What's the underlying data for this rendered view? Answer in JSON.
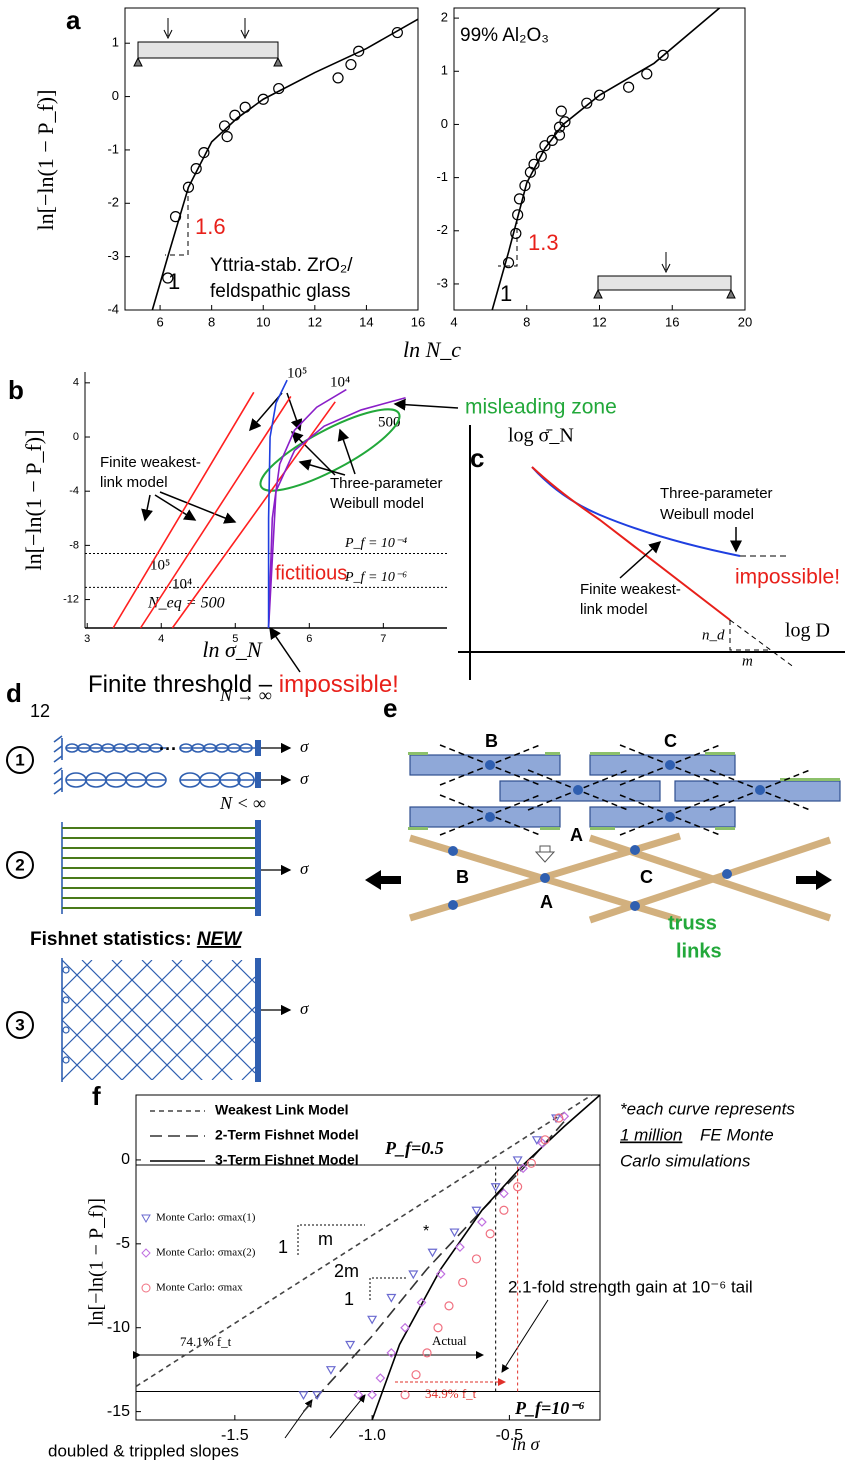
{
  "chart_data": [
    {
      "type": "scatter",
      "panel_label": "a",
      "ylabel": "ln[−ln(1 − P_f)]",
      "xlabel": "ln N_c",
      "xlim": [
        4.64,
        16
      ],
      "xticks": [
        6,
        8,
        10,
        12,
        14,
        16
      ],
      "ylim": [
        -4,
        1.66
      ],
      "yticks": [
        -4,
        -3,
        -2,
        -1,
        0,
        1
      ],
      "series": [
        {
          "type": "scatter",
          "marker": "circle",
          "color": "#000000",
          "x": [
            6.3,
            6.6,
            7.1,
            7.4,
            7.7,
            8.5,
            8.6,
            8.9,
            9.3,
            10.0,
            10.6,
            12.9,
            13.4,
            13.7,
            15.2
          ],
          "values": [
            -3.4,
            -2.25,
            -1.7,
            -1.35,
            -1.05,
            -0.55,
            -0.75,
            -0.35,
            -0.2,
            -0.05,
            0.15,
            0.35,
            0.6,
            0.85,
            1.2
          ]
        },
        {
          "type": "line",
          "color": "#000000",
          "x": [
            5.7,
            6.3,
            7.1,
            8,
            9,
            10,
            12,
            14,
            16
          ],
          "values": [
            -4,
            -3,
            -1.7,
            -0.85,
            -0.4,
            -0.05,
            0.45,
            0.9,
            1.45
          ]
        }
      ],
      "annotations": [
        "1.6",
        "1",
        "Yttria-stab. ZrO₂/",
        "feldspathic glass"
      ],
      "annotation_color": "#e8201a"
    },
    {
      "type": "scatter",
      "xlim": [
        4,
        20
      ],
      "xticks": [
        4,
        8,
        12,
        16,
        20
      ],
      "ylim": [
        -3.49,
        2.19
      ],
      "yticks": [
        -3,
        -2,
        -1,
        0,
        1,
        2
      ],
      "series": [
        {
          "type": "scatter",
          "marker": "circle",
          "color": "#000000",
          "x": [
            7,
            7.4,
            7.5,
            7.6,
            7.9,
            8.2,
            8.4,
            8.8,
            9,
            9.4,
            9.8,
            9.8,
            9.9,
            10.1,
            11.3,
            12,
            13.6,
            14.6,
            15.5
          ],
          "values": [
            -2.6,
            -2.05,
            -1.7,
            -1.4,
            -1.15,
            -0.9,
            -0.75,
            -0.6,
            -0.4,
            -0.3,
            -0.2,
            -0.05,
            0.25,
            0.05,
            0.4,
            0.55,
            0.7,
            0.95,
            1.3
          ]
        },
        {
          "type": "line",
          "color": "#000000",
          "x": [
            6.1,
            7,
            8,
            9,
            10,
            12,
            15,
            18.6
          ],
          "values": [
            -3.49,
            -2.4,
            -1.1,
            -0.45,
            0,
            0.55,
            1.15,
            2.19
          ]
        }
      ],
      "annotations": [
        "99% Al₂O₃",
        "1.3",
        "1"
      ],
      "annotation_color": "#e8201a"
    },
    {
      "type": "line",
      "panel_label": "b",
      "ylabel": "ln[−ln(1 − P_f)]",
      "xlabel": "ln σ_N",
      "xlim": [
        2.97,
        7.86
      ],
      "xticks": [
        3,
        4,
        5,
        6,
        7
      ],
      "ylim": [
        -14.1,
        4.8
      ],
      "yticks": [
        -12,
        -8,
        -4,
        0,
        4
      ],
      "hlines": [
        -8.6,
        -11.1
      ],
      "series": [
        {
          "type": "line",
          "color": "#ff2020",
          "x": [
            3.35,
            5.25
          ],
          "values": [
            -14.1,
            3.3
          ]
        },
        {
          "type": "line",
          "color": "#ff2020",
          "x": [
            3.72,
            5.75
          ],
          "values": [
            -14.1,
            3.0
          ]
        },
        {
          "type": "line",
          "color": "#ff2020",
          "x": [
            4.15,
            6.35
          ],
          "values": [
            -14.1,
            2.6
          ]
        },
        {
          "type": "line",
          "color": "#8a1fc8",
          "x": [
            5.45,
            5.5,
            5.6,
            5.8,
            6.1,
            6.5
          ],
          "values": [
            -14.1,
            -6,
            -2,
            0.5,
            2.2,
            3.5
          ]
        },
        {
          "type": "line",
          "color": "#8a1fc8",
          "x": [
            5.45,
            5.55,
            5.8,
            6.2,
            6.7,
            7.3
          ],
          "values": [
            -14.1,
            -4,
            -1,
            0.8,
            2.0,
            2.9
          ]
        },
        {
          "type": "line",
          "color": "#1f3fe0",
          "x": [
            5.45,
            5.45,
            5.47,
            5.55,
            5.7
          ],
          "values": [
            -14.1,
            -6,
            0,
            2.5,
            4.2
          ]
        }
      ],
      "annotations": [
        "10⁵",
        "10⁴",
        "500",
        "10⁵",
        "10⁴",
        "N_eq = 500",
        "P_f = 10⁻⁴",
        "P_f = 10⁻⁶",
        "Finite weakest-",
        "link model",
        "Three-parameter",
        "Weibull model",
        "misleading zone",
        "fictitious",
        "Finite threshold – ",
        "impossible!"
      ]
    },
    {
      "type": "scatter",
      "panel_label": "f",
      "ylabel": "ln[−ln(1 − P_f)]",
      "xlabel": "ln σ",
      "xlim": [
        -1.86,
        -0.17
      ],
      "xticks": [
        -1.5,
        {
          "value": -1,
          "label": "-1.0"
        },
        -0.5
      ],
      "ylim": [
        -15.5,
        3.87
      ],
      "yticks": [
        -15,
        -10,
        -5,
        0
      ],
      "hlines": [
        -0.3,
        -13.8
      ],
      "vlines": [
        -0.55,
        -0.47
      ],
      "vline_colors": [
        "#000000",
        "#e0302a"
      ],
      "series": [
        {
          "name": "Weakest Link Model",
          "type": "line",
          "dash": "dashed",
          "color": "#444444",
          "x": [
            -1.86,
            -0.2
          ],
          "values": [
            -13.5,
            3.87
          ]
        },
        {
          "name": "2-Term Fishnet Model",
          "type": "line",
          "dash": "long-dashed",
          "color": "#333333",
          "x": [
            -1.25,
            -1.0,
            -0.8,
            -0.6,
            -0.45,
            -0.3
          ],
          "values": [
            -15,
            -10.5,
            -6.5,
            -3,
            -0.5,
            2.3
          ]
        },
        {
          "name": "3-Term Fishnet Model",
          "type": "line",
          "color": "#000000",
          "x": [
            -1.0,
            -0.9,
            -0.75,
            -0.6,
            -0.45,
            -0.3,
            -0.17
          ],
          "values": [
            -15.5,
            -11,
            -6.5,
            -3,
            -0.3,
            2.0,
            3.87
          ]
        },
        {
          "name": "Monte Carlo: σmax(1)",
          "type": "scatter",
          "marker": "triangle",
          "color": "#6a6ad0",
          "x": [
            -1.25,
            -1.2,
            -1.15,
            -1.08,
            -1.0,
            -0.93,
            -0.85,
            -0.78,
            -0.7,
            -0.62,
            -0.55,
            -0.47,
            -0.4,
            -0.33
          ],
          "values": [
            -14,
            -14,
            -12.5,
            -11,
            -9.5,
            -8.2,
            -6.8,
            -5.5,
            -4.3,
            -3,
            -1.6,
            0,
            1.2,
            2.5
          ]
        },
        {
          "name": "Monte Carlo: σmax(2)",
          "type": "scatter",
          "marker": "diamond",
          "color": "#c070e0",
          "x": [
            -1.05,
            -1.0,
            -0.97,
            -0.93,
            -0.88,
            -0.82,
            -0.75,
            -0.68,
            -0.6,
            -0.52,
            -0.45,
            -0.38,
            -0.3
          ],
          "values": [
            -14,
            -14,
            -13,
            -11.5,
            -10,
            -8.5,
            -6.8,
            -5.2,
            -3.7,
            -2,
            -0.5,
            1,
            2.6
          ]
        },
        {
          "name": "Monte Carlo: σmax",
          "type": "scatter",
          "marker": "circle",
          "color": "#f07080",
          "x": [
            -0.88,
            -0.84,
            -0.8,
            -0.76,
            -0.72,
            -0.67,
            -0.62,
            -0.57,
            -0.52,
            -0.47,
            -0.42,
            -0.37,
            -0.32
          ],
          "values": [
            -14,
            -12.8,
            -11.5,
            -10,
            -8.7,
            -7.3,
            -5.9,
            -4.4,
            -3,
            -1.6,
            -0.2,
            1.2,
            2.5
          ]
        }
      ],
      "annotations": [
        "P_f=0.5",
        "P_f=10⁻⁶",
        "m",
        "1",
        "2m",
        "1",
        "*",
        "Actual",
        "74.1% f_t",
        "34.9% f_t",
        "2.1-fold strength gain at 10⁻⁶ tail",
        "doubled & trippled slopes",
        "*each curve represents",
        "1 million",
        "FE Monte",
        "Carlo simulations"
      ]
    }
  ],
  "panels": {
    "c": {
      "label": "c",
      "ylabel": "log σ̄_N",
      "xlabel": "log D",
      "texts": [
        "Three-parameter",
        "Weibull model",
        "impossible!",
        "Finite weakest-",
        "link model",
        "n_d",
        "m"
      ]
    },
    "d": {
      "label": "d",
      "texts": [
        "12",
        "N → ∞",
        "N < ∞",
        "σ",
        "σ",
        "σ",
        "σ"
      ],
      "rows": [
        "1",
        "2",
        "3"
      ],
      "title": "Fishnet statistics: ",
      "title_emphasis": "NEW"
    },
    "e": {
      "label": "e",
      "top_labels": [
        "B",
        "C",
        "A"
      ],
      "bottom_labels": [
        "B",
        "A",
        "C"
      ],
      "links": [
        "truss",
        "links"
      ]
    }
  }
}
